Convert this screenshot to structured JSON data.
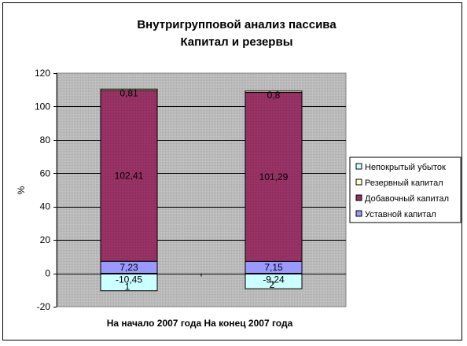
{
  "chart_data": {
    "type": "bar",
    "stacked": true,
    "title": [
      "Внутригрупповой анализ пассива",
      "Капитал и резервы"
    ],
    "ylabel": "%",
    "xlabel": "",
    "ylim": [
      -20,
      120
    ],
    "yticks": [
      "120",
      "100",
      "80",
      "60",
      "40",
      "20",
      "0",
      "-20"
    ],
    "ytick_values": [
      120,
      100,
      80,
      60,
      40,
      20,
      0,
      -20
    ],
    "categories": [
      "На начало 2007 года",
      "На конец 2007 года"
    ],
    "categories_text": "На начало 2007 года На конец 2007 года",
    "grid": true,
    "legend_position": "right",
    "extra_labels": [
      "1",
      "2"
    ],
    "series": [
      {
        "name": "Уставной капитал",
        "values": [
          7.23,
          7.15
        ],
        "labels": [
          "7,23",
          "7,15"
        ],
        "color": "#9999ff"
      },
      {
        "name": "Добавочный капитал",
        "values": [
          102.41,
          101.29
        ],
        "labels": [
          "102,41",
          "101,29"
        ],
        "color": "#993366"
      },
      {
        "name": "Резервный капитал",
        "values": [
          0.81,
          0.8
        ],
        "labels": [
          "0,81",
          "0,8"
        ],
        "color": "#ffffcc"
      },
      {
        "name": "Непокрытый убыток",
        "values": [
          -10.45,
          -9.24
        ],
        "labels": [
          "-10,45",
          "-9,24"
        ],
        "color": "#ccffff"
      }
    ],
    "legend_order": [
      "Непокрытый убыток",
      "Резервный капитал",
      "Добавочный капитал",
      "Уставной капитал"
    ]
  }
}
